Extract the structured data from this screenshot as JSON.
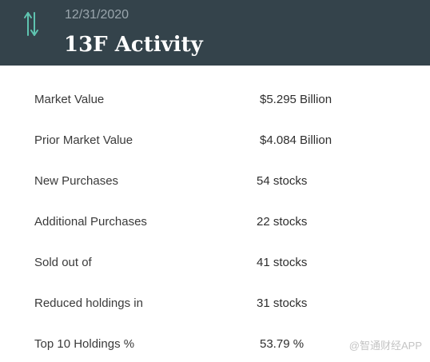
{
  "header": {
    "icon": "up-down-arrows-icon",
    "date": "12/31/2020",
    "title": "13F Activity"
  },
  "rows": [
    {
      "label": "Market Value",
      "value": "$5.295 Billion"
    },
    {
      "label": "Prior Market Value",
      "value": "$4.084 Billion"
    },
    {
      "label": "New Purchases",
      "value": "54 stocks"
    },
    {
      "label": "Additional Purchases",
      "value": "22 stocks"
    },
    {
      "label": "Sold out of",
      "value": "41 stocks"
    },
    {
      "label": "Reduced holdings in",
      "value": "31 stocks"
    },
    {
      "label": "Top 10 Holdings %",
      "value": "53.79 %"
    }
  ],
  "watermark": "@智通财经APP",
  "colors": {
    "header_bg": "#34434b",
    "icon_accent": "#5fc4b0"
  }
}
